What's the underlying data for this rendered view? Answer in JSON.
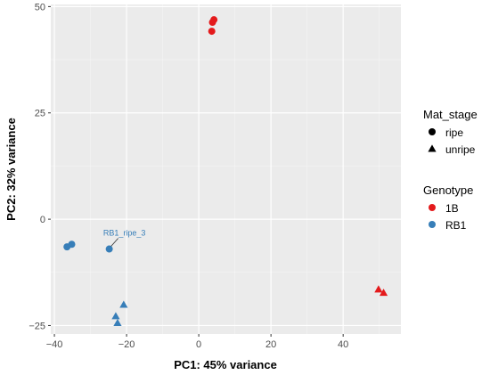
{
  "chart_data": {
    "type": "scatter",
    "title": "",
    "xlabel": "PC1: 45% variance",
    "ylabel": "PC2: 32% variance",
    "xlim": [
      -41,
      56
    ],
    "ylim": [
      -27,
      50.5
    ],
    "x_ticks": [
      -40,
      -20,
      0,
      20,
      40
    ],
    "x_tick_labels": [
      "−40",
      "−20",
      "0",
      "20",
      "40"
    ],
    "y_ticks": [
      -25,
      0,
      25,
      50
    ],
    "y_tick_labels": [
      "−25",
      "0",
      "25",
      "50"
    ],
    "grid": true,
    "legend_position": "right",
    "legends": [
      {
        "title": "Mat_stage",
        "items": [
          {
            "label": "ripe",
            "shape": "circle",
            "color": "#000000"
          },
          {
            "label": "unripe",
            "shape": "triangle",
            "color": "#000000"
          }
        ]
      },
      {
        "title": "Genotype",
        "items": [
          {
            "label": "1B",
            "shape": "circle",
            "color": "#E41A1C"
          },
          {
            "label": "RB1",
            "shape": "circle",
            "color": "#377EB8"
          }
        ]
      }
    ],
    "series": [
      {
        "name": "1B",
        "color": "#E41A1C",
        "points": [
          {
            "x": 3.6,
            "y": 44.2,
            "shape": "circle"
          },
          {
            "x": 3.8,
            "y": 46.3,
            "shape": "circle"
          },
          {
            "x": 4.2,
            "y": 46.9,
            "shape": "circle"
          },
          {
            "x": 49.8,
            "y": -16.5,
            "shape": "triangle"
          },
          {
            "x": 51.2,
            "y": -17.3,
            "shape": "triangle"
          }
        ]
      },
      {
        "name": "RB1",
        "color": "#377EB8",
        "points": [
          {
            "x": -36.5,
            "y": -6.5,
            "shape": "circle"
          },
          {
            "x": -35.2,
            "y": -5.9,
            "shape": "circle"
          },
          {
            "x": -24.8,
            "y": -7.0,
            "shape": "circle"
          },
          {
            "x": -23.0,
            "y": -22.8,
            "shape": "triangle"
          },
          {
            "x": -22.5,
            "y": -24.4,
            "shape": "triangle"
          },
          {
            "x": -20.8,
            "y": -20.1,
            "shape": "triangle"
          }
        ]
      }
    ],
    "annotations": [
      {
        "text": "RB1_ripe_3",
        "point_x": -24.8,
        "point_y": -7.0,
        "color": "#377EB8"
      }
    ]
  }
}
